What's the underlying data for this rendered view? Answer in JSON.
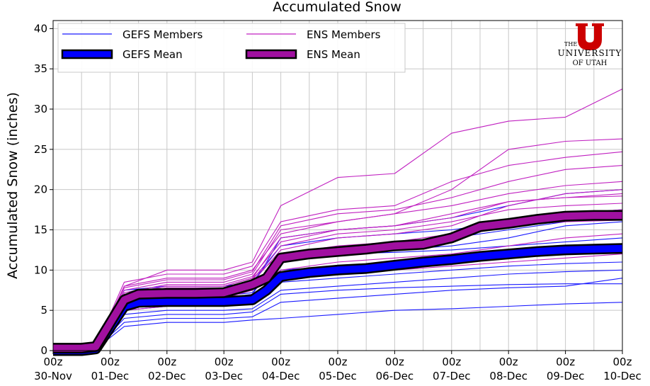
{
  "chart_data": {
    "type": "line",
    "title": "Accumulated Snow",
    "xlabel": "",
    "ylabel": "Accumulated Snow (inches)",
    "ylim": [
      0,
      41
    ],
    "yticks": [
      0,
      5,
      10,
      15,
      20,
      25,
      30,
      35,
      40
    ],
    "xlim": [
      0,
      240
    ],
    "x_tick_hours": [
      0,
      24,
      48,
      72,
      96,
      120,
      144,
      168,
      192,
      216,
      240
    ],
    "x_tick_labels": [
      [
        "00z",
        "30-Nov"
      ],
      [
        "00z",
        "01-Dec"
      ],
      [
        "00z",
        "02-Dec"
      ],
      [
        "00z",
        "03-Dec"
      ],
      [
        "00z",
        "04-Dec"
      ],
      [
        "00z",
        "05-Dec"
      ],
      [
        "00z",
        "06-Dec"
      ],
      [
        "00z",
        "07-Dec"
      ],
      [
        "00z",
        "08-Dec"
      ],
      [
        "00z",
        "09-Dec"
      ],
      [
        "00z",
        "10-Dec"
      ]
    ],
    "grid": true,
    "legend": {
      "placement": "top-left",
      "entries": [
        "GEFS Members",
        "ENS Members",
        "GEFS Mean",
        "ENS Mean"
      ]
    },
    "colors": {
      "gefs": "#1a1aff",
      "ens": "#c020c0",
      "gefs_mean": "#0000ff",
      "ens_mean": "#a010a0",
      "outline": "#000000"
    },
    "gefs_mean": {
      "name": "GEFS Mean",
      "x": [
        0,
        12,
        18,
        30,
        36,
        48,
        60,
        72,
        84,
        90,
        96,
        108,
        120,
        132,
        144,
        156,
        168,
        180,
        192,
        204,
        216,
        228,
        240
      ],
      "y": [
        0,
        0,
        0.2,
        5.5,
        6.0,
        6.1,
        6.1,
        6.1,
        6.3,
        7.5,
        9.2,
        9.7,
        10.0,
        10.2,
        10.6,
        11.0,
        11.3,
        11.7,
        12.0,
        12.3,
        12.5,
        12.6,
        12.7
      ]
    },
    "ens_mean": {
      "name": "ENS Mean",
      "x": [
        0,
        12,
        18,
        30,
        36,
        48,
        60,
        72,
        84,
        90,
        96,
        108,
        120,
        132,
        144,
        156,
        168,
        180,
        192,
        204,
        216,
        228,
        240
      ],
      "y": [
        0.3,
        0.3,
        0.5,
        6.3,
        7.0,
        7.1,
        7.1,
        7.2,
        8.2,
        9.0,
        11.5,
        12.0,
        12.3,
        12.6,
        13.0,
        13.2,
        14.0,
        15.4,
        15.8,
        16.3,
        16.7,
        16.8,
        16.8
      ]
    },
    "gefs_members": [
      {
        "x": [
          0,
          12,
          18,
          30,
          48,
          72,
          84,
          96,
          120,
          144,
          168,
          192,
          216,
          240
        ],
        "y": [
          0,
          0,
          0.2,
          5.0,
          5.5,
          5.5,
          6.0,
          8.5,
          9.0,
          9.5,
          10.0,
          10.5,
          10.8,
          11.0
        ]
      },
      {
        "x": [
          0,
          12,
          18,
          30,
          48,
          72,
          84,
          96,
          120,
          144,
          168,
          192,
          216,
          240
        ],
        "y": [
          0,
          0,
          0.2,
          6.5,
          7.0,
          7.0,
          7.5,
          11.0,
          12.0,
          12.5,
          13.0,
          14.0,
          15.5,
          16.0
        ]
      },
      {
        "x": [
          0,
          12,
          18,
          30,
          48,
          72,
          84,
          96,
          120,
          144,
          168,
          192,
          216,
          240
        ],
        "y": [
          0,
          0,
          0.2,
          4.0,
          4.5,
          4.5,
          4.8,
          7.0,
          7.5,
          7.8,
          8.0,
          8.2,
          8.3,
          8.3
        ]
      },
      {
        "x": [
          0,
          12,
          18,
          30,
          48,
          72,
          84,
          96,
          120,
          144,
          168,
          192,
          216,
          240
        ],
        "y": [
          0,
          0,
          0.2,
          7.0,
          7.5,
          7.5,
          8.0,
          14.0,
          15.0,
          15.5,
          16.5,
          18.0,
          19.5,
          20.0
        ]
      },
      {
        "x": [
          0,
          12,
          18,
          30,
          48,
          72,
          84,
          96,
          120,
          144,
          168,
          192,
          216,
          240
        ],
        "y": [
          0,
          0,
          0.2,
          3.0,
          3.5,
          3.5,
          3.8,
          4.0,
          4.5,
          5.0,
          5.2,
          5.5,
          5.8,
          6.0
        ]
      },
      {
        "x": [
          0,
          12,
          18,
          30,
          48,
          72,
          84,
          96,
          120,
          144,
          168,
          192,
          216,
          240
        ],
        "y": [
          0,
          0,
          0.2,
          5.8,
          6.2,
          6.3,
          6.8,
          9.5,
          10.0,
          10.5,
          11.2,
          11.8,
          12.2,
          12.5
        ]
      },
      {
        "x": [
          0,
          12,
          18,
          30,
          48,
          72,
          84,
          96,
          120,
          144,
          168,
          192,
          216,
          240
        ],
        "y": [
          0,
          0,
          0.2,
          6.0,
          6.5,
          6.5,
          7.0,
          12.0,
          12.5,
          13.0,
          14.0,
          15.0,
          16.0,
          16.5
        ]
      },
      {
        "x": [
          0,
          12,
          18,
          30,
          48,
          72,
          84,
          96,
          120,
          144,
          168,
          192,
          216,
          240
        ],
        "y": [
          0,
          0,
          0.2,
          4.5,
          5.0,
          5.0,
          5.2,
          7.5,
          8.0,
          8.5,
          9.0,
          9.5,
          9.8,
          10.0
        ]
      },
      {
        "x": [
          0,
          12,
          18,
          30,
          48,
          72,
          84,
          96,
          120,
          144,
          168,
          192,
          216,
          240
        ],
        "y": [
          0,
          0,
          0.2,
          7.5,
          8.0,
          8.0,
          8.5,
          13.0,
          14.0,
          14.5,
          15.0,
          16.0,
          17.0,
          17.5
        ]
      },
      {
        "x": [
          0,
          12,
          18,
          30,
          48,
          72,
          84,
          96,
          120,
          144,
          168,
          192,
          216,
          240
        ],
        "y": [
          0,
          0,
          0.2,
          3.5,
          4.0,
          4.0,
          4.2,
          6.0,
          6.5,
          7.0,
          7.5,
          7.8,
          8.0,
          9.0
        ]
      },
      {
        "x": [
          0,
          12,
          18,
          30,
          48,
          72,
          84,
          96,
          120,
          144,
          168,
          192,
          216,
          240
        ],
        "y": [
          0,
          0,
          0.2,
          5.5,
          6.0,
          6.0,
          6.5,
          10.0,
          10.5,
          11.0,
          11.5,
          12.0,
          12.5,
          13.0
        ]
      },
      {
        "x": [
          0,
          12,
          18,
          30,
          48,
          72,
          84,
          96,
          120,
          144,
          168,
          192,
          216,
          240
        ],
        "y": [
          0,
          0,
          0.2,
          6.2,
          6.8,
          6.8,
          7.2,
          11.5,
          12.0,
          12.2,
          12.5,
          13.0,
          13.5,
          14.0
        ]
      }
    ],
    "ens_members": [
      {
        "x": [
          0,
          12,
          18,
          30,
          48,
          72,
          84,
          96,
          120,
          144,
          168,
          192,
          216,
          240
        ],
        "y": [
          0.3,
          0.3,
          0.5,
          8.0,
          10.0,
          10.0,
          11.0,
          18.0,
          21.5,
          22.0,
          27.0,
          28.5,
          29.0,
          32.5
        ]
      },
      {
        "x": [
          0,
          12,
          18,
          30,
          48,
          72,
          84,
          96,
          120,
          144,
          168,
          192,
          216,
          240
        ],
        "y": [
          0.3,
          0.3,
          0.5,
          7.0,
          8.0,
          8.0,
          9.0,
          12.0,
          13.0,
          13.5,
          14.5,
          16.0,
          17.0,
          17.5
        ]
      },
      {
        "x": [
          0,
          12,
          18,
          30,
          48,
          72,
          84,
          96,
          120,
          144,
          168,
          192,
          216,
          240
        ],
        "y": [
          0.3,
          0.3,
          0.5,
          6.0,
          6.5,
          6.5,
          7.5,
          10.0,
          11.0,
          11.5,
          12.0,
          13.0,
          14.0,
          14.5
        ]
      },
      {
        "x": [
          0,
          12,
          18,
          30,
          48,
          72,
          84,
          96,
          120,
          144,
          168,
          192,
          216,
          240
        ],
        "y": [
          0.3,
          0.3,
          0.5,
          7.5,
          8.5,
          8.5,
          9.5,
          15.0,
          16.0,
          17.0,
          20.0,
          25.0,
          26.0,
          26.3
        ]
      },
      {
        "x": [
          0,
          12,
          18,
          30,
          48,
          72,
          84,
          96,
          120,
          144,
          168,
          192,
          216,
          240
        ],
        "y": [
          0.3,
          0.3,
          0.5,
          5.5,
          6.0,
          6.0,
          7.0,
          9.5,
          10.0,
          10.5,
          11.0,
          12.0,
          12.5,
          13.0
        ]
      },
      {
        "x": [
          0,
          12,
          18,
          30,
          48,
          72,
          84,
          96,
          120,
          144,
          168,
          192,
          216,
          240
        ],
        "y": [
          0.3,
          0.3,
          0.5,
          8.5,
          9.5,
          9.5,
          10.5,
          16.0,
          17.5,
          18.0,
          21.0,
          23.0,
          24.0,
          24.7
        ]
      },
      {
        "x": [
          0,
          12,
          18,
          30,
          48,
          72,
          84,
          96,
          120,
          144,
          168,
          192,
          216,
          240
        ],
        "y": [
          0.3,
          0.3,
          0.5,
          6.5,
          7.5,
          7.5,
          8.5,
          12.5,
          14.0,
          14.5,
          15.5,
          18.0,
          19.5,
          20.0
        ]
      },
      {
        "x": [
          0,
          12,
          18,
          30,
          48,
          72,
          84,
          96,
          120,
          144,
          168,
          192,
          216,
          240
        ],
        "y": [
          0.3,
          0.3,
          0.5,
          7.2,
          8.2,
          8.2,
          9.2,
          13.5,
          15.0,
          15.5,
          16.5,
          18.5,
          19.0,
          19.2
        ]
      },
      {
        "x": [
          0,
          12,
          18,
          30,
          48,
          72,
          84,
          96,
          120,
          144,
          168,
          192,
          216,
          240
        ],
        "y": [
          0.3,
          0.3,
          0.5,
          5.0,
          5.5,
          5.5,
          6.5,
          9.0,
          9.5,
          10.0,
          10.5,
          11.0,
          11.5,
          12.0
        ]
      },
      {
        "x": [
          0,
          12,
          18,
          30,
          48,
          72,
          84,
          96,
          120,
          144,
          168,
          192,
          216,
          240
        ],
        "y": [
          0.3,
          0.3,
          0.5,
          8.0,
          9.0,
          9.0,
          10.0,
          14.5,
          16.0,
          17.0,
          18.0,
          19.5,
          20.5,
          21.0
        ]
      },
      {
        "x": [
          0,
          12,
          18,
          30,
          48,
          72,
          84,
          96,
          120,
          144,
          168,
          192,
          216,
          240
        ],
        "y": [
          0.3,
          0.3,
          0.5,
          6.8,
          7.8,
          7.8,
          8.8,
          13.0,
          14.5,
          15.0,
          16.0,
          17.5,
          18.0,
          18.3
        ]
      },
      {
        "x": [
          0,
          12,
          18,
          30,
          48,
          72,
          84,
          96,
          120,
          144,
          168,
          192,
          216,
          240
        ],
        "y": [
          0.3,
          0.3,
          0.5,
          7.8,
          8.8,
          8.8,
          9.8,
          15.5,
          17.0,
          17.5,
          19.0,
          21.0,
          22.5,
          23.0
        ]
      },
      {
        "x": [
          0,
          12,
          18,
          30,
          48,
          72,
          84,
          96,
          120,
          144,
          168,
          192,
          216,
          240
        ],
        "y": [
          0.3,
          0.3,
          0.5,
          6.2,
          7.0,
          7.0,
          8.0,
          11.5,
          12.5,
          13.0,
          14.0,
          15.5,
          16.0,
          16.2
        ]
      },
      {
        "x": [
          0,
          12,
          18,
          30,
          48,
          72,
          84,
          96,
          120,
          144,
          168,
          192,
          216,
          240
        ],
        "y": [
          0.3,
          0.3,
          0.5,
          7.0,
          8.0,
          8.0,
          9.0,
          14.0,
          15.0,
          15.5,
          17.0,
          18.5,
          19.0,
          19.5
        ]
      }
    ]
  },
  "logo": {
    "the": "THE",
    "university": "UNIVERSITY",
    "of_utah": "OF UTAH",
    "color": "#cc0000"
  }
}
